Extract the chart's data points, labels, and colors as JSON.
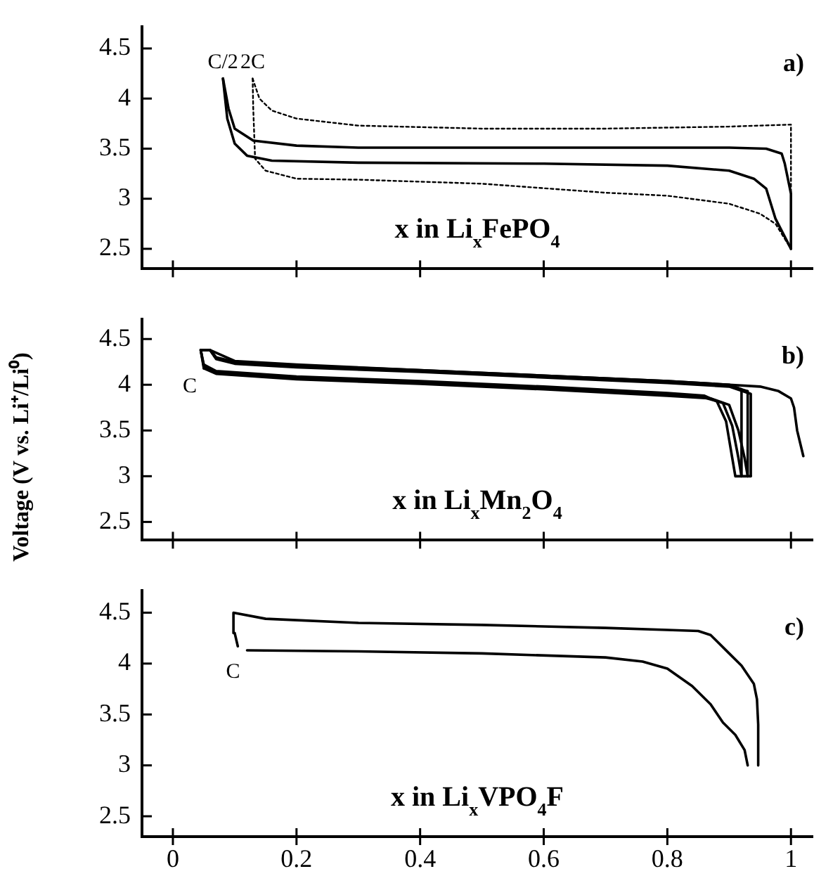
{
  "chart_data": [
    {
      "type": "line",
      "xlabel": "x in Li$_{x}$FePO$_{4}$",
      "xlim": [
        -0.05,
        1.035
      ],
      "ylim": [
        2.3,
        4.72
      ],
      "xticks": [
        0,
        0.2,
        0.4,
        0.6,
        0.8,
        1
      ],
      "yticks": [
        2.5,
        3,
        3.5,
        4,
        4.5
      ],
      "tick_labels": "y",
      "grid": false,
      "legend": false,
      "marker": "none",
      "series": [
        {
          "name": "C/2",
          "color": "#000000",
          "line_style": "solid",
          "x": [
            0.081,
            0.088,
            0.1,
            0.12,
            0.16,
            0.3,
            0.6,
            0.8,
            0.9,
            0.94,
            0.96,
            0.975,
            1.0
          ],
          "values": [
            4.2,
            3.8,
            3.55,
            3.43,
            3.38,
            3.36,
            3.35,
            3.33,
            3.28,
            3.2,
            3.1,
            2.8,
            2.5
          ]
        },
        {
          "color": "#000000",
          "line_style": "solid",
          "x": [
            0.081,
            0.09,
            0.1,
            0.13,
            0.2,
            0.3,
            0.5,
            0.9,
            0.96,
            0.985,
            0.99,
            1.0,
            1.0
          ],
          "values": [
            4.2,
            3.9,
            3.7,
            3.58,
            3.53,
            3.51,
            3.51,
            3.51,
            3.5,
            3.45,
            3.35,
            3.05,
            2.5
          ]
        },
        {
          "name": "2C",
          "color": "#000000",
          "line_style": "dotted",
          "x": [
            0.129,
            0.13,
            0.133,
            0.15,
            0.2,
            0.3,
            0.5,
            0.7,
            0.8,
            0.9,
            0.95,
            0.975,
            1.0
          ],
          "values": [
            4.2,
            3.9,
            3.4,
            3.28,
            3.2,
            3.19,
            3.15,
            3.06,
            3.03,
            2.95,
            2.85,
            2.75,
            2.5
          ]
        },
        {
          "color": "#000000",
          "line_style": "dotted",
          "x": [
            0.129,
            0.14,
            0.16,
            0.2,
            0.3,
            0.5,
            0.7,
            0.9,
            1.0,
            1.0
          ],
          "values": [
            4.2,
            4.0,
            3.88,
            3.8,
            3.73,
            3.7,
            3.7,
            3.72,
            3.74,
            2.5
          ]
        }
      ],
      "annotations": [
        "a)"
      ]
    },
    {
      "type": "line",
      "xlabel": "x in Li$_{x}$Mn$_{2}$O$_{4}$",
      "ylabel": "Voltage (V vs. Li⁺/Li⁰)",
      "xlim": [
        -0.05,
        1.035
      ],
      "ylim": [
        2.3,
        4.72
      ],
      "xticks": [
        0,
        0.2,
        0.4,
        0.6,
        0.8,
        1
      ],
      "yticks": [
        2.5,
        3,
        3.5,
        4,
        4.5
      ],
      "tick_labels": "y",
      "grid": false,
      "legend": false,
      "marker": "none",
      "series": [
        {
          "name": "C",
          "color": "#000000",
          "line_style": "solid",
          "x": [
            0.05,
            0.07,
            0.2,
            0.4,
            0.6,
            0.8,
            0.86,
            0.88,
            0.895,
            0.905,
            0.91,
            0.92
          ],
          "values": [
            4.22,
            4.15,
            4.09,
            4.04,
            3.98,
            3.91,
            3.88,
            3.82,
            3.6,
            3.2,
            3.0,
            3.0
          ]
        },
        {
          "color": "#000000",
          "line_style": "solid",
          "x": [
            0.05,
            0.045,
            0.06,
            0.07,
            0.1,
            0.2,
            0.4,
            0.6,
            0.8,
            0.9,
            0.92,
            0.92
          ],
          "values": [
            4.22,
            4.38,
            4.38,
            4.3,
            4.25,
            4.21,
            4.16,
            4.1,
            4.04,
            4.0,
            3.95,
            3.0
          ]
        },
        {
          "color": "#000000",
          "line_style": "solid",
          "x": [
            0.05,
            0.07,
            0.2,
            0.4,
            0.6,
            0.8,
            0.86,
            0.89,
            0.905,
            0.915,
            0.92,
            0.93
          ],
          "values": [
            4.2,
            4.13,
            4.07,
            4.02,
            3.96,
            3.89,
            3.86,
            3.8,
            3.55,
            3.2,
            3.0,
            3.0
          ]
        },
        {
          "color": "#000000",
          "line_style": "solid",
          "x": [
            0.05,
            0.045,
            0.06,
            0.07,
            0.1,
            0.2,
            0.4,
            0.6,
            0.8,
            0.9,
            0.93,
            0.93
          ],
          "values": [
            4.2,
            4.38,
            4.38,
            4.29,
            4.24,
            4.2,
            4.15,
            4.09,
            4.03,
            3.99,
            3.93,
            3.0
          ]
        },
        {
          "color": "#000000",
          "line_style": "solid",
          "x": [
            0.05,
            0.07,
            0.2,
            0.4,
            0.6,
            0.8,
            0.87,
            0.9,
            0.915,
            0.925,
            0.93,
            0.935
          ],
          "values": [
            4.18,
            4.12,
            4.06,
            4.01,
            3.95,
            3.88,
            3.85,
            3.78,
            3.5,
            3.2,
            3.0,
            3.0
          ]
        },
        {
          "color": "#000000",
          "line_style": "solid",
          "x": [
            0.05,
            0.045,
            0.06,
            0.07,
            0.1,
            0.2,
            0.4,
            0.6,
            0.8,
            0.9,
            0.935,
            0.935
          ],
          "values": [
            4.18,
            4.38,
            4.38,
            4.28,
            4.23,
            4.19,
            4.14,
            4.08,
            4.02,
            3.98,
            3.9,
            3.0
          ]
        },
        {
          "color": "#000000",
          "line_style": "solid",
          "x": [
            0.06,
            0.1,
            0.2,
            0.4,
            0.6,
            0.8,
            0.9,
            0.95,
            0.98,
            1.0,
            1.005,
            1.01,
            1.02
          ],
          "values": [
            4.38,
            4.26,
            4.22,
            4.16,
            4.1,
            4.04,
            4.0,
            3.98,
            3.93,
            3.85,
            3.75,
            3.5,
            3.22
          ]
        }
      ],
      "annotations": [
        "b)"
      ]
    },
    {
      "type": "line",
      "xlabel": "x in Li$_{x}$VPO$_{4}$F",
      "xlim": [
        -0.05,
        1.035
      ],
      "ylim": [
        2.3,
        4.72
      ],
      "xticks": [
        0,
        0.2,
        0.4,
        0.6,
        0.8,
        1
      ],
      "yticks": [
        2.5,
        3,
        3.5,
        4,
        4.5
      ],
      "grid": false,
      "legend": false,
      "marker": "none",
      "series": [
        {
          "name": "C",
          "color": "#000000",
          "line_style": "solid",
          "x": [
            0.12,
            0.3,
            0.5,
            0.7,
            0.76,
            0.8,
            0.84,
            0.87,
            0.89,
            0.91,
            0.925,
            0.93
          ],
          "values": [
            4.13,
            4.12,
            4.1,
            4.06,
            4.02,
            3.95,
            3.78,
            3.6,
            3.42,
            3.3,
            3.15,
            3.0
          ]
        },
        {
          "color": "#000000",
          "line_style": "solid",
          "x": [
            0.105,
            0.1,
            0.098,
            0.15,
            0.3,
            0.5,
            0.7,
            0.8,
            0.85,
            0.87,
            0.9,
            0.92,
            0.94,
            0.945,
            0.947,
            0.947
          ],
          "values": [
            4.17,
            4.3,
            4.5,
            4.44,
            4.4,
            4.38,
            4.35,
            4.33,
            4.32,
            4.28,
            4.1,
            3.98,
            3.8,
            3.65,
            3.4,
            3.0
          ]
        }
      ],
      "annotations": [
        "c)"
      ]
    }
  ]
}
